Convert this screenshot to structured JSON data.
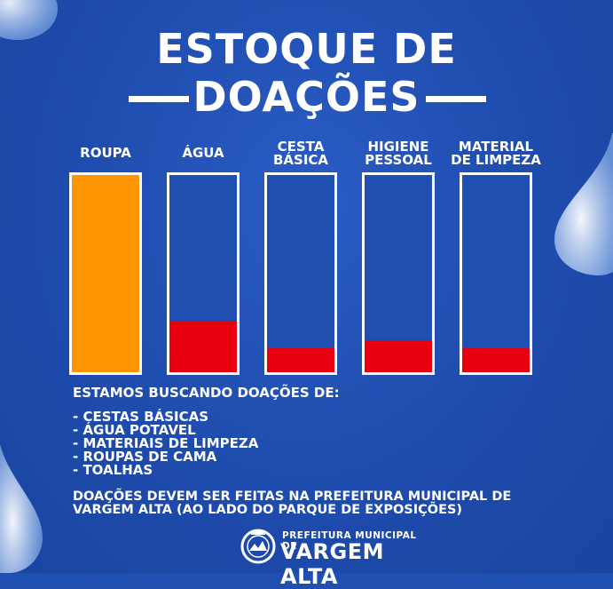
{
  "title": {
    "line1": "ESTOQUE DE",
    "line2": "DOAÇÕES"
  },
  "chart_data": {
    "type": "bar",
    "categories": [
      "ROUPA",
      "ÁGUA",
      "CESTA BÁSICA",
      "HIGIENE PESSOAL",
      "MATERIAL DE LIMPEZA"
    ],
    "category_lines": [
      [
        "ROUPA"
      ],
      [
        "ÁGUA"
      ],
      [
        "CESTA",
        "BÁSICA"
      ],
      [
        "HIGIENE",
        "PESSOAL"
      ],
      [
        "MATERIAL",
        "DE LIMPEZA"
      ]
    ],
    "values": [
      100,
      26,
      12,
      16,
      12
    ],
    "ylim": [
      0,
      100
    ],
    "bar_colors": [
      "#ff9500",
      "#e8000f",
      "#e8000f",
      "#e8000f",
      "#e8000f"
    ],
    "grid": false
  },
  "info": {
    "seeking": "ESTAMOS BUSCANDO DOAÇÕES DE:",
    "items": [
      "- CESTAS BÁSICAS",
      "- ÁGUA POTAVEL",
      "- MATERIAIS DE LIMPEZA",
      "- ROUPAS DE CAMA",
      "- TOALHAS"
    ],
    "where_line1": "DOAÇÕES DEVEM SER FEITAS NA PREFEITURA MUNICIPAL DE",
    "where_line2": "VARGEM ALTA (AO LADO DO PARQUE DE EXPOSIÇÕES)"
  },
  "logo": {
    "small": "PREFEITURA MUNICIPAL DE",
    "big": "VARGEM ALTA",
    "icon": "municipal-seal-icon"
  },
  "colors": {
    "background": "#1f4fb0",
    "frame": "#ffffff",
    "orange": "#ff9500",
    "red": "#e8000f"
  }
}
